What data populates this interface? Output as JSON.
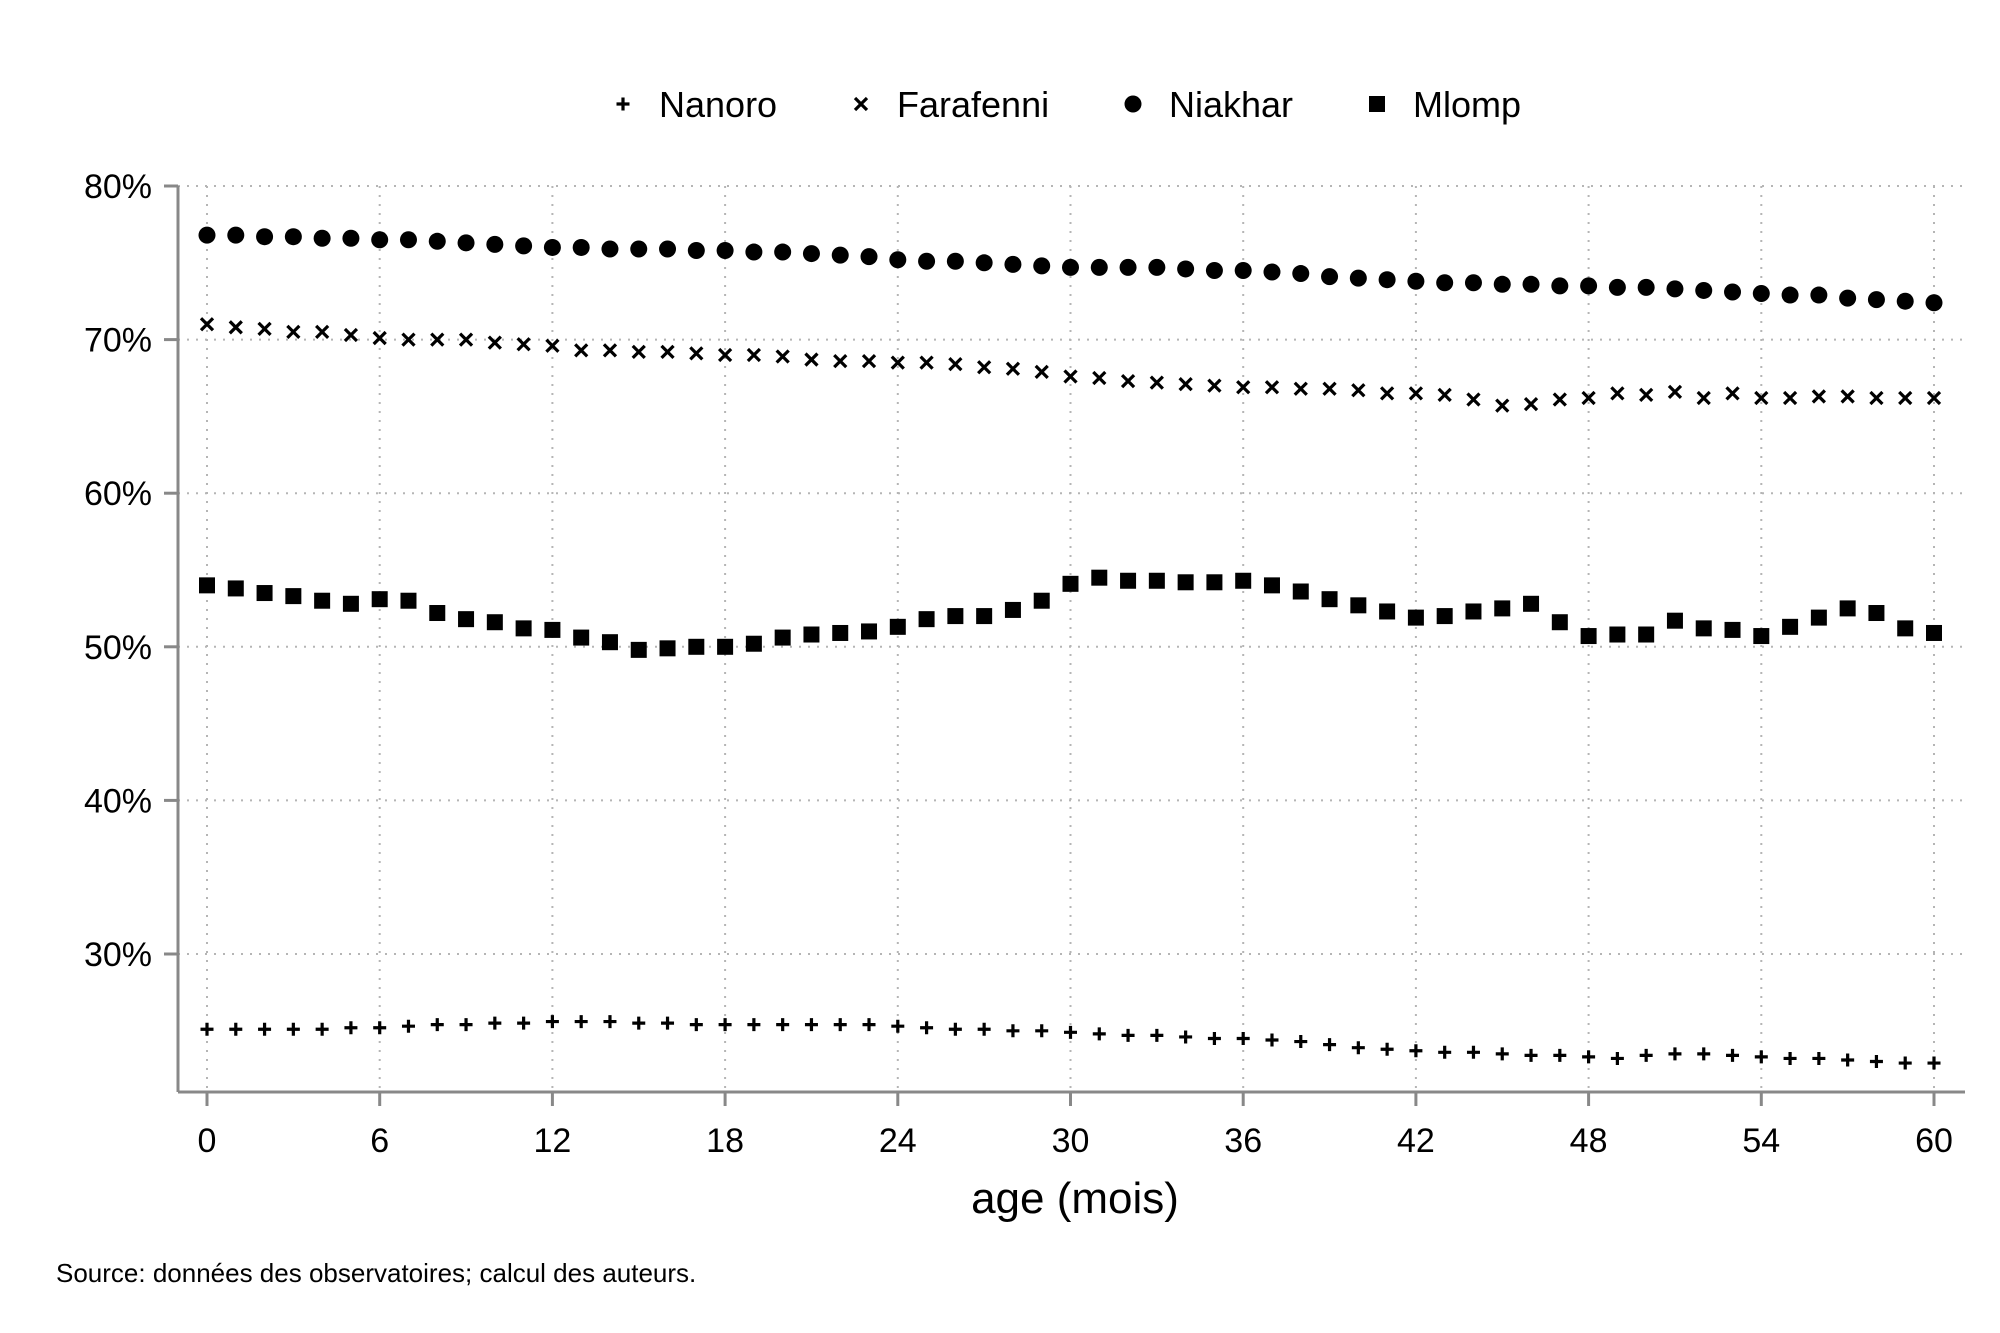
{
  "chart_data": {
    "type": "scatter",
    "title": "",
    "xlabel": "age (mois)",
    "ylabel": "",
    "xlim": [
      0,
      60
    ],
    "ylim": [
      21,
      80
    ],
    "x_ticks": [
      0,
      6,
      12,
      18,
      24,
      30,
      36,
      42,
      48,
      54,
      60
    ],
    "x_tick_labels": [
      "0",
      "6",
      "12",
      "18",
      "24",
      "30",
      "36",
      "42",
      "48",
      "54",
      "60"
    ],
    "y_ticks": [
      30,
      40,
      50,
      60,
      70,
      80
    ],
    "y_tick_labels": [
      "30%",
      "40%",
      "50%",
      "60%",
      "70%",
      "80%"
    ],
    "grid": true,
    "legend_position": "top-center",
    "source_note": "Source: données des observatoires; calcul des auteurs.",
    "series": [
      {
        "name": "Nanoro",
        "marker": "plus",
        "color": "#000000",
        "values": [
          25.1,
          25.1,
          25.1,
          25.1,
          25.1,
          25.2,
          25.2,
          25.3,
          25.4,
          25.4,
          25.5,
          25.5,
          25.6,
          25.6,
          25.6,
          25.5,
          25.5,
          25.4,
          25.4,
          25.4,
          25.4,
          25.4,
          25.4,
          25.4,
          25.3,
          25.2,
          25.1,
          25.1,
          25.0,
          25.0,
          24.9,
          24.8,
          24.7,
          24.7,
          24.6,
          24.5,
          24.5,
          24.4,
          24.3,
          24.1,
          23.9,
          23.8,
          23.7,
          23.6,
          23.6,
          23.5,
          23.4,
          23.4,
          23.3,
          23.2,
          23.4,
          23.5,
          23.5,
          23.4,
          23.3,
          23.2,
          23.2,
          23.1,
          23.0,
          22.9,
          22.9
        ]
      },
      {
        "name": "Farafenni",
        "marker": "x",
        "color": "#000000",
        "values": [
          71.0,
          70.8,
          70.7,
          70.5,
          70.5,
          70.3,
          70.1,
          70.0,
          70.0,
          70.0,
          69.8,
          69.7,
          69.6,
          69.3,
          69.3,
          69.2,
          69.2,
          69.1,
          69.0,
          69.0,
          68.9,
          68.7,
          68.6,
          68.6,
          68.5,
          68.5,
          68.4,
          68.2,
          68.1,
          67.9,
          67.6,
          67.5,
          67.3,
          67.2,
          67.1,
          67.0,
          66.9,
          66.9,
          66.8,
          66.8,
          66.7,
          66.5,
          66.5,
          66.4,
          66.1,
          65.7,
          65.8,
          66.1,
          66.2,
          66.5,
          66.4,
          66.6,
          66.2,
          66.5,
          66.2,
          66.2,
          66.3,
          66.3,
          66.2,
          66.2,
          66.2
        ]
      },
      {
        "name": "Niakhar",
        "marker": "circle",
        "color": "#000000",
        "values": [
          76.8,
          76.8,
          76.7,
          76.7,
          76.6,
          76.6,
          76.5,
          76.5,
          76.4,
          76.3,
          76.2,
          76.1,
          76.0,
          76.0,
          75.9,
          75.9,
          75.9,
          75.8,
          75.8,
          75.7,
          75.7,
          75.6,
          75.5,
          75.4,
          75.2,
          75.1,
          75.1,
          75.0,
          74.9,
          74.8,
          74.7,
          74.7,
          74.7,
          74.7,
          74.6,
          74.5,
          74.5,
          74.4,
          74.3,
          74.1,
          74.0,
          73.9,
          73.8,
          73.7,
          73.7,
          73.6,
          73.6,
          73.5,
          73.5,
          73.4,
          73.4,
          73.3,
          73.2,
          73.1,
          73.0,
          72.9,
          72.9,
          72.7,
          72.6,
          72.5,
          72.4
        ]
      },
      {
        "name": "Mlomp",
        "marker": "square",
        "color": "#000000",
        "values": [
          54.0,
          53.8,
          53.5,
          53.3,
          53.0,
          52.8,
          53.1,
          53.0,
          52.2,
          51.8,
          51.6,
          51.2,
          51.1,
          50.6,
          50.3,
          49.8,
          49.9,
          50.0,
          50.0,
          50.2,
          50.6,
          50.8,
          50.9,
          51.0,
          51.3,
          51.8,
          52.0,
          52.0,
          52.4,
          53.0,
          54.1,
          54.5,
          54.3,
          54.3,
          54.2,
          54.2,
          54.3,
          54.0,
          53.6,
          53.1,
          52.7,
          52.3,
          51.9,
          52.0,
          52.3,
          52.5,
          52.8,
          51.6,
          50.7,
          50.8,
          50.8,
          51.7,
          51.2,
          51.1,
          50.7,
          51.3,
          51.9,
          52.5,
          52.2,
          51.2,
          50.9
        ]
      }
    ]
  }
}
